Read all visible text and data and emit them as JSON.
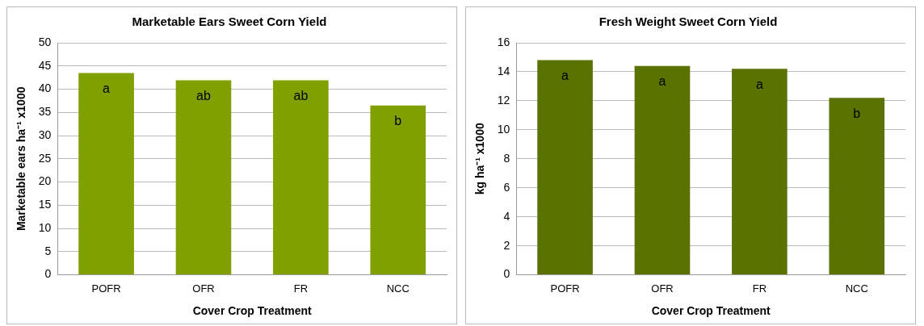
{
  "chart_data": [
    {
      "type": "bar",
      "title": "Marketable Ears Sweet Corn Yield",
      "xlabel": "Cover Crop Treatment",
      "ylabel": "Marketable ears ha⁻¹ x1000",
      "categories": [
        "POFR",
        "OFR",
        "FR",
        "NCC"
      ],
      "values": [
        43.5,
        41.9,
        41.9,
        36.5
      ],
      "value_labels": [
        "a",
        "ab",
        "ab",
        "b"
      ],
      "color": "#80a000",
      "ylim": [
        0,
        50
      ],
      "yticks": [
        0,
        5,
        10,
        15,
        20,
        25,
        30,
        35,
        40,
        45,
        50
      ],
      "grid": "y",
      "legend": false
    },
    {
      "type": "bar",
      "title": "Fresh Weight Sweet Corn Yield",
      "xlabel": "Cover Crop Treatment",
      "ylabel": "kg ha⁻¹ x1000",
      "categories": [
        "POFR",
        "OFR",
        "FR",
        "NCC"
      ],
      "values": [
        14.8,
        14.4,
        14.2,
        12.2
      ],
      "value_labels": [
        "a",
        "a",
        "a",
        "b"
      ],
      "color": "#5a7200",
      "ylim": [
        0,
        16
      ],
      "yticks": [
        0,
        2,
        4,
        6,
        8,
        10,
        12,
        14,
        16
      ],
      "grid": "y",
      "legend": false
    }
  ]
}
